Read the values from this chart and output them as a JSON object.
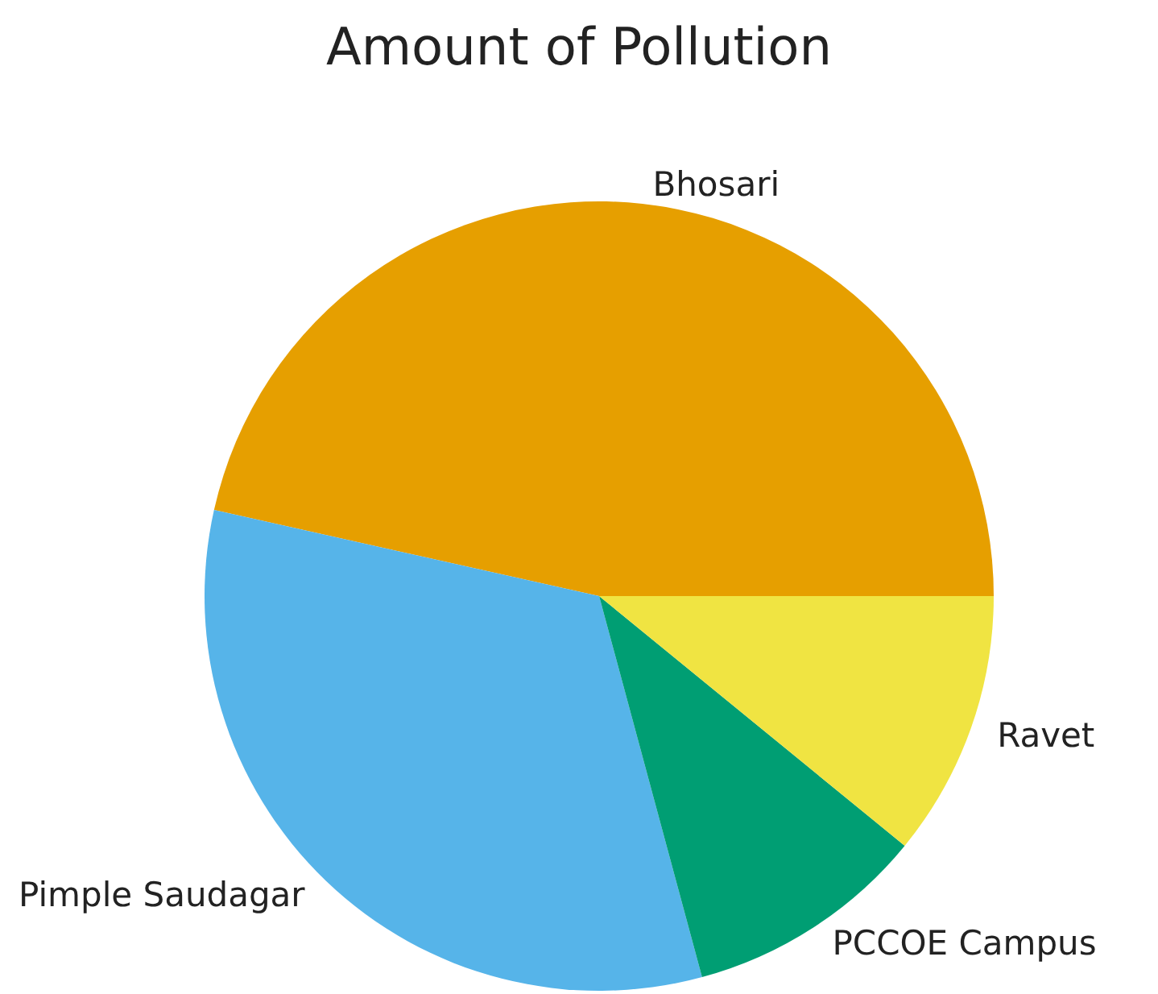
{
  "chart_data": {
    "type": "pie",
    "title": "Amount of Pollution",
    "categories": [
      "Bhosari",
      "Pimple Saudagar",
      "PCCOE Campus",
      "Ravet"
    ],
    "values": [
      46.5,
      32.7,
      9.9,
      10.9
    ],
    "colors": [
      "#e69f00",
      "#56b4e9",
      "#009e73",
      "#f0e442"
    ]
  }
}
